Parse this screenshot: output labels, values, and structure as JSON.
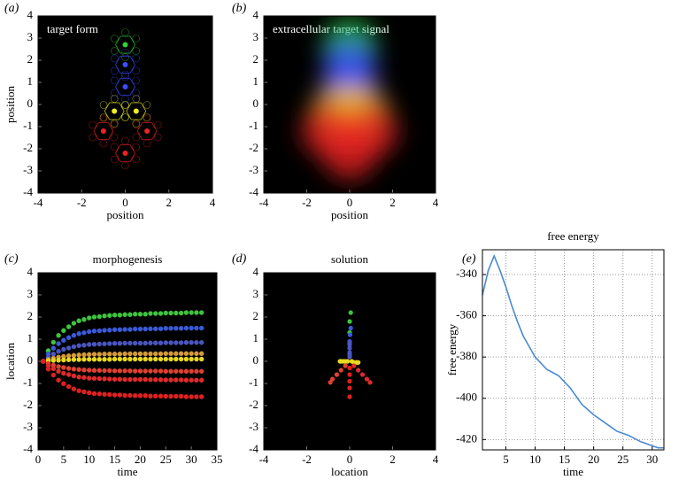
{
  "chart_data": [
    {
      "type": "scatter",
      "panel_label": "(a)",
      "title": "target form",
      "title_position": "inside",
      "facecolor": "#000000",
      "xlabel": "position",
      "ylabel": "position",
      "x": [
        0,
        0,
        0,
        -0.5,
        0.5,
        -1,
        1,
        0
      ],
      "y": [
        2.7,
        1.8,
        0.8,
        -0.3,
        -0.3,
        -1.2,
        -1.2,
        -2.2
      ],
      "colors": [
        "#2fd13a",
        "#3a4dff",
        "#3a4dff",
        "#f0f020",
        "#f0f020",
        "#ee2222",
        "#ee2222",
        "#ee2222"
      ],
      "xlim": [
        -4,
        4
      ],
      "ylim": [
        -4,
        4
      ],
      "xticks": [
        -4,
        -2,
        0,
        2,
        4
      ],
      "yticks": [
        -4,
        -3,
        -2,
        -1,
        0,
        1,
        2,
        3,
        4
      ],
      "grid": false
    },
    {
      "type": "density",
      "panel_label": "(b)",
      "title": "extracellular target signal",
      "title_position": "inside",
      "facecolor": "#000000",
      "xlabel": "position",
      "x": [
        0,
        0,
        0,
        -0.5,
        0.5,
        -1,
        1,
        0
      ],
      "y": [
        2.7,
        1.8,
        0.8,
        -0.3,
        -0.3,
        -1.2,
        -1.2,
        -2.2
      ],
      "colors": [
        "#2fd13a",
        "#3a4dff",
        "#3a4dff",
        "#f0c020",
        "#f0c020",
        "#ee2222",
        "#ee2222",
        "#ee2222"
      ],
      "xlim": [
        -4,
        4
      ],
      "ylim": [
        -4,
        4
      ],
      "xticks": [
        -4,
        -2,
        0,
        2,
        4
      ],
      "yticks": [
        -4,
        -3,
        -2,
        -1,
        0,
        1,
        2,
        3,
        4
      ],
      "grid": false
    },
    {
      "type": "trajectories",
      "panel_label": "(c)",
      "title": "morphogenesis",
      "title_position": "above",
      "facecolor": "#000000",
      "xlabel": "time",
      "ylabel": "location",
      "x": [
        1,
        2,
        3,
        4,
        5,
        6,
        7,
        8,
        9,
        10,
        11,
        12,
        13,
        14,
        15,
        16,
        17,
        18,
        19,
        20,
        21,
        22,
        23,
        24,
        25,
        26,
        27,
        28,
        29,
        30,
        31,
        32
      ],
      "series": [
        {
          "color": "#3ec43e",
          "values": [
            0,
            0.48,
            0.86,
            1.17,
            1.39,
            1.56,
            1.72,
            1.83,
            1.89,
            1.96,
            2.0,
            2.02,
            2.05,
            2.07,
            2.09,
            2.09,
            2.11,
            2.11,
            2.13,
            2.13,
            2.13,
            2.16,
            2.16,
            2.16,
            2.18,
            2.18,
            2.18,
            2.18,
            2.2,
            2.2,
            2.2,
            2.2
          ]
        },
        {
          "color": "#3a5ad8",
          "values": [
            0,
            0.33,
            0.59,
            0.8,
            0.95,
            1.07,
            1.17,
            1.25,
            1.29,
            1.34,
            1.37,
            1.38,
            1.4,
            1.41,
            1.43,
            1.43,
            1.44,
            1.44,
            1.46,
            1.46,
            1.46,
            1.47,
            1.47,
            1.47,
            1.49,
            1.49,
            1.49,
            1.49,
            1.5,
            1.5,
            1.5,
            1.5
          ]
        },
        {
          "color": "#4a55c0",
          "values": [
            0,
            0.19,
            0.33,
            0.45,
            0.54,
            0.6,
            0.66,
            0.71,
            0.73,
            0.76,
            0.77,
            0.78,
            0.79,
            0.8,
            0.81,
            0.81,
            0.82,
            0.82,
            0.82,
            0.82,
            0.82,
            0.83,
            0.83,
            0.83,
            0.84,
            0.84,
            0.84,
            0.84,
            0.85,
            0.85,
            0.85,
            0.85
          ]
        },
        {
          "color": "#d49a3a",
          "values": [
            0,
            0.08,
            0.14,
            0.19,
            0.22,
            0.25,
            0.27,
            0.29,
            0.3,
            0.31,
            0.32,
            0.32,
            0.33,
            0.33,
            0.33,
            0.33,
            0.34,
            0.34,
            0.34,
            0.34,
            0.34,
            0.34,
            0.34,
            0.34,
            0.35,
            0.35,
            0.35,
            0.35,
            0.35,
            0.35,
            0.35,
            0.35
          ]
        },
        {
          "color": "#e8d820",
          "values": [
            0,
            0.02,
            0.04,
            0.05,
            0.06,
            0.07,
            0.08,
            0.08,
            0.09,
            0.09,
            0.09,
            0.09,
            0.09,
            0.09,
            0.1,
            0.1,
            0.1,
            0.1,
            0.1,
            0.1,
            0.1,
            0.1,
            0.1,
            0.1,
            0.1,
            0.1,
            0.1,
            0.1,
            0.1,
            0.1,
            0.1,
            0.1
          ]
        },
        {
          "color": "#e04030",
          "values": [
            0,
            -0.1,
            -0.18,
            -0.24,
            -0.28,
            -0.32,
            -0.35,
            -0.37,
            -0.39,
            -0.4,
            -0.41,
            -0.41,
            -0.42,
            -0.42,
            -0.43,
            -0.43,
            -0.43,
            -0.43,
            -0.44,
            -0.44,
            -0.44,
            -0.44,
            -0.44,
            -0.44,
            -0.45,
            -0.45,
            -0.45,
            -0.45,
            -0.45,
            -0.45,
            -0.45,
            -0.45
          ]
        },
        {
          "color": "#e02a2a",
          "values": [
            0,
            -0.19,
            -0.33,
            -0.45,
            -0.54,
            -0.6,
            -0.66,
            -0.71,
            -0.73,
            -0.76,
            -0.77,
            -0.78,
            -0.79,
            -0.8,
            -0.81,
            -0.81,
            -0.82,
            -0.82,
            -0.82,
            -0.82,
            -0.82,
            -0.83,
            -0.83,
            -0.83,
            -0.84,
            -0.84,
            -0.84,
            -0.84,
            -0.85,
            -0.85,
            -0.85,
            -0.85
          ]
        },
        {
          "color": "#e02020",
          "values": [
            0,
            -0.35,
            -0.62,
            -0.85,
            -1.01,
            -1.14,
            -1.25,
            -1.33,
            -1.38,
            -1.42,
            -1.46,
            -1.47,
            -1.49,
            -1.5,
            -1.52,
            -1.52,
            -1.54,
            -1.54,
            -1.55,
            -1.55,
            -1.55,
            -1.57,
            -1.57,
            -1.57,
            -1.58,
            -1.58,
            -1.58,
            -1.58,
            -1.6,
            -1.6,
            -1.6,
            -1.6
          ]
        }
      ],
      "xlim": [
        0,
        35
      ],
      "ylim": [
        -4,
        4
      ],
      "xticks": [
        0,
        5,
        10,
        15,
        20,
        25,
        30,
        35
      ],
      "yticks": [
        -4,
        -3,
        -2,
        -1,
        0,
        1,
        2,
        3,
        4
      ],
      "grid": false
    },
    {
      "type": "paths",
      "panel_label": "(d)",
      "title": "solution",
      "title_position": "above",
      "facecolor": "#000000",
      "xlabel": "location",
      "series": [
        {
          "color": "#3ec43e",
          "x": [
            0,
            0,
            0,
            0,
            0.05
          ],
          "y": [
            0.3,
            0.8,
            1.3,
            1.8,
            2.2
          ]
        },
        {
          "color": "#3a5ad8",
          "x": [
            0,
            0,
            0,
            0.02,
            0.05
          ],
          "y": [
            0.3,
            0.6,
            0.9,
            1.2,
            1.5
          ]
        },
        {
          "color": "#4a55c0",
          "x": [
            0,
            0,
            0,
            0,
            0
          ],
          "y": [
            0.2,
            0.4,
            0.6,
            0.75,
            0.85
          ]
        },
        {
          "color": "#e8d820",
          "x": [
            -0.1,
            -0.2,
            -0.3,
            -0.4,
            -0.45
          ],
          "y": [
            0,
            0,
            0,
            0,
            0
          ]
        },
        {
          "color": "#e8d820",
          "x": [
            0.1,
            0.2,
            0.3,
            0.35,
            0.4
          ],
          "y": [
            0,
            -0.05,
            -0.05,
            -0.05,
            -0.05
          ]
        },
        {
          "color": "#e04030",
          "x": [
            -0.2,
            -0.4,
            -0.6,
            -0.8,
            -0.9
          ],
          "y": [
            -0.2,
            -0.4,
            -0.6,
            -0.8,
            -0.95
          ]
        },
        {
          "color": "#e02a2a",
          "x": [
            0.2,
            0.4,
            0.6,
            0.8,
            0.95
          ],
          "y": [
            -0.2,
            -0.4,
            -0.6,
            -0.8,
            -0.95
          ]
        },
        {
          "color": "#e02020",
          "x": [
            0,
            0,
            0,
            0,
            0
          ],
          "y": [
            -0.3,
            -0.6,
            -0.9,
            -1.2,
            -1.6
          ]
        }
      ],
      "xlim": [
        -4,
        4
      ],
      "ylim": [
        -4,
        4
      ],
      "xticks": [
        -4,
        -2,
        0,
        2,
        4
      ],
      "yticks": [
        -4,
        -3,
        -2,
        -1,
        0,
        1,
        2,
        3,
        4
      ],
      "grid": false
    },
    {
      "type": "line",
      "panel_label": "(e)",
      "title": "free energy",
      "title_position": "above",
      "facecolor": "#ffffff",
      "xlabel": "time",
      "ylabel": "free energy",
      "color": "#4a8ad0",
      "x": [
        1,
        2,
        3,
        4,
        5,
        6,
        7,
        8,
        9,
        10,
        12,
        14,
        15,
        16,
        17,
        18,
        20,
        22,
        24,
        25,
        26,
        28,
        30,
        31,
        32
      ],
      "values": [
        -350,
        -338,
        -331,
        -338,
        -346,
        -355,
        -363,
        -370,
        -375,
        -380,
        -386,
        -389,
        -392,
        -395,
        -399,
        -403,
        -408,
        -412,
        -416,
        -417,
        -418,
        -421,
        -423,
        -424,
        -424
      ],
      "xlim": [
        1,
        32
      ],
      "ylim": [
        -425,
        -328
      ],
      "xticks": [
        5,
        10,
        15,
        20,
        25,
        30
      ],
      "yticks": [
        -420,
        -400,
        -380,
        -360,
        -340
      ],
      "grid": true
    }
  ]
}
